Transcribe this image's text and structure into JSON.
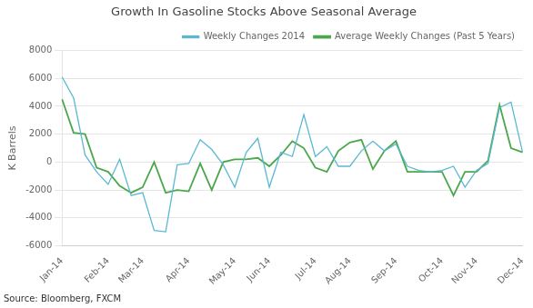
{
  "chart_data": {
    "type": "line",
    "title": "Growth In Gasoline Stocks Above Seasonal Average",
    "y_label": "K Barrels",
    "annotations": [
      "Source: Bloomberg, FXCM"
    ],
    "categories": [
      "Jan-14",
      null,
      null,
      null,
      "Feb-14",
      null,
      null,
      "Mar-14",
      null,
      null,
      null,
      "Apr-14",
      null,
      null,
      null,
      "May-14",
      null,
      null,
      "Jun-14",
      null,
      null,
      null,
      "Jul-14",
      null,
      null,
      "Aug-14",
      null,
      null,
      null,
      "Sep-14",
      null,
      null,
      null,
      "Oct-14",
      null,
      null,
      "Nov-14",
      null,
      null,
      null,
      "Dec-14"
    ],
    "series": [
      {
        "name": "Weekly Changes 2014",
        "color": "#5BB8D4",
        "values": [
          6100,
          4600,
          500,
          -700,
          -1600,
          200,
          -2400,
          -2200,
          -4900,
          -5000,
          -200,
          -100,
          1600,
          900,
          -200,
          -1800,
          700,
          1700,
          -1800,
          700,
          400,
          3400,
          400,
          1100,
          -300,
          -300,
          800,
          1500,
          800,
          1300,
          -300,
          -600,
          -700,
          -600,
          -300,
          -1800,
          -600,
          -100,
          3900,
          4300,
          700
        ]
      },
      {
        "name": "Average Weekly Changes (Past 5 Years)",
        "color": "#4CA64C",
        "values": [
          4500,
          2100,
          2000,
          -400,
          -700,
          -1700,
          -2200,
          -1800,
          0,
          -2200,
          -2000,
          -2100,
          -100,
          -2000,
          0,
          200,
          200,
          300,
          -300,
          500,
          1500,
          1000,
          -400,
          -700,
          800,
          1400,
          1600,
          -500,
          800,
          1500,
          -700,
          -700,
          -700,
          -700,
          -2400,
          -700,
          -700,
          100,
          4100,
          1000,
          700
        ]
      }
    ],
    "ylim": [
      -6000,
      8000
    ],
    "yticks": [
      -6000,
      -4000,
      -2000,
      0,
      2000,
      4000,
      6000,
      8000
    ],
    "grid": true,
    "legend": "upper right"
  }
}
